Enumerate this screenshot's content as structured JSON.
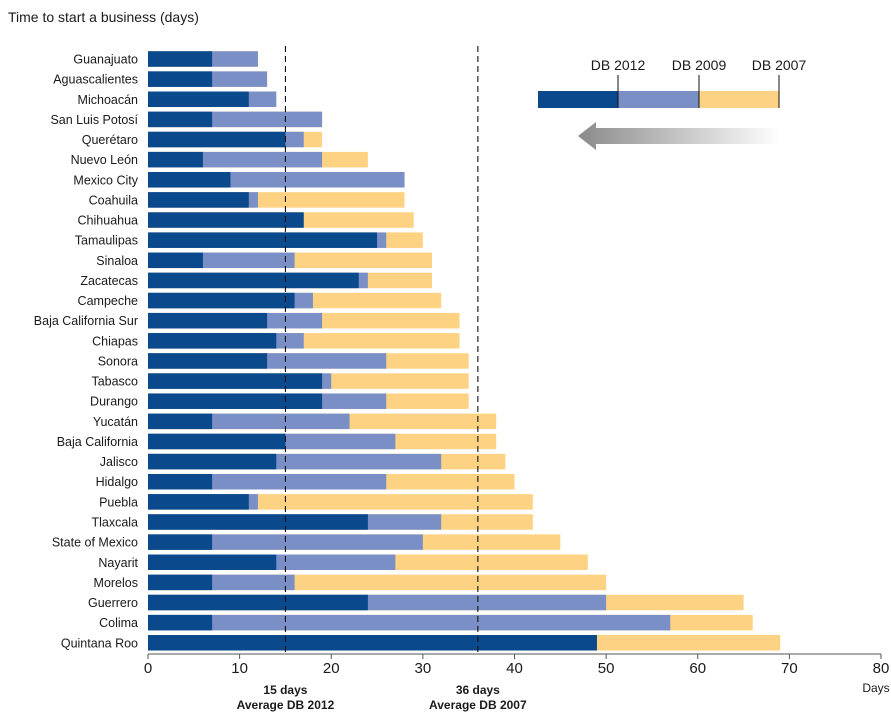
{
  "chart_data": {
    "type": "bar",
    "orientation": "horizontal",
    "stacked_overlay": true,
    "title": "Time to start a business (days)",
    "xlabel": "Days",
    "xlim": [
      0,
      80
    ],
    "x_ticks": [
      0,
      10,
      20,
      30,
      40,
      50,
      60,
      70,
      80
    ],
    "grid": false,
    "legend_position": "top-right",
    "categories": [
      "Guanajuato",
      "Aguascalientes",
      "Michoacán",
      "San Luis Potosí",
      "Querétaro",
      "Nuevo León",
      "Mexico City",
      "Coahuila",
      "Chihuahua",
      "Tamaulipas",
      "Sinaloa",
      "Zacatecas",
      "Campeche",
      "Baja California Sur",
      "Chiapas",
      "Sonora",
      "Tabasco",
      "Durango",
      "Yucatán",
      "Baja California",
      "Jalisco",
      "Hidalgo",
      "Puebla",
      "Tlaxcala",
      "State of Mexico",
      "Nayarit",
      "Morelos",
      "Guerrero",
      "Colima",
      "Quintana Roo"
    ],
    "series": [
      {
        "name": "DB 2012",
        "color": "#0a4a8c",
        "values": [
          7,
          7,
          11,
          7,
          15,
          6,
          9,
          11,
          17,
          25,
          6,
          23,
          16,
          13,
          14,
          13,
          19,
          19,
          7,
          15,
          14,
          7,
          11,
          24,
          7,
          14,
          7,
          24,
          7,
          49
        ]
      },
      {
        "name": "DB 2009",
        "color": "#7b8fc7",
        "values": [
          12,
          13,
          14,
          19,
          17,
          19,
          28,
          12,
          0,
          26,
          16,
          24,
          18,
          19,
          17,
          26,
          20,
          26,
          22,
          27,
          32,
          26,
          12,
          32,
          30,
          27,
          16,
          50,
          57,
          0
        ]
      },
      {
        "name": "DB 2007",
        "color": "#fdd383",
        "values": [
          12,
          13,
          14,
          19,
          19,
          24,
          28,
          28,
          29,
          30,
          31,
          31,
          32,
          34,
          34,
          35,
          35,
          35,
          38,
          38,
          39,
          40,
          42,
          42,
          45,
          48,
          50,
          65,
          66,
          69
        ]
      }
    ],
    "reference_lines": [
      {
        "value": 15,
        "label_line1": "15 days",
        "label_line2": "Average DB 2012"
      },
      {
        "value": 36,
        "label_line1": "36 days",
        "label_line2": "Average DB 2007"
      }
    ]
  }
}
